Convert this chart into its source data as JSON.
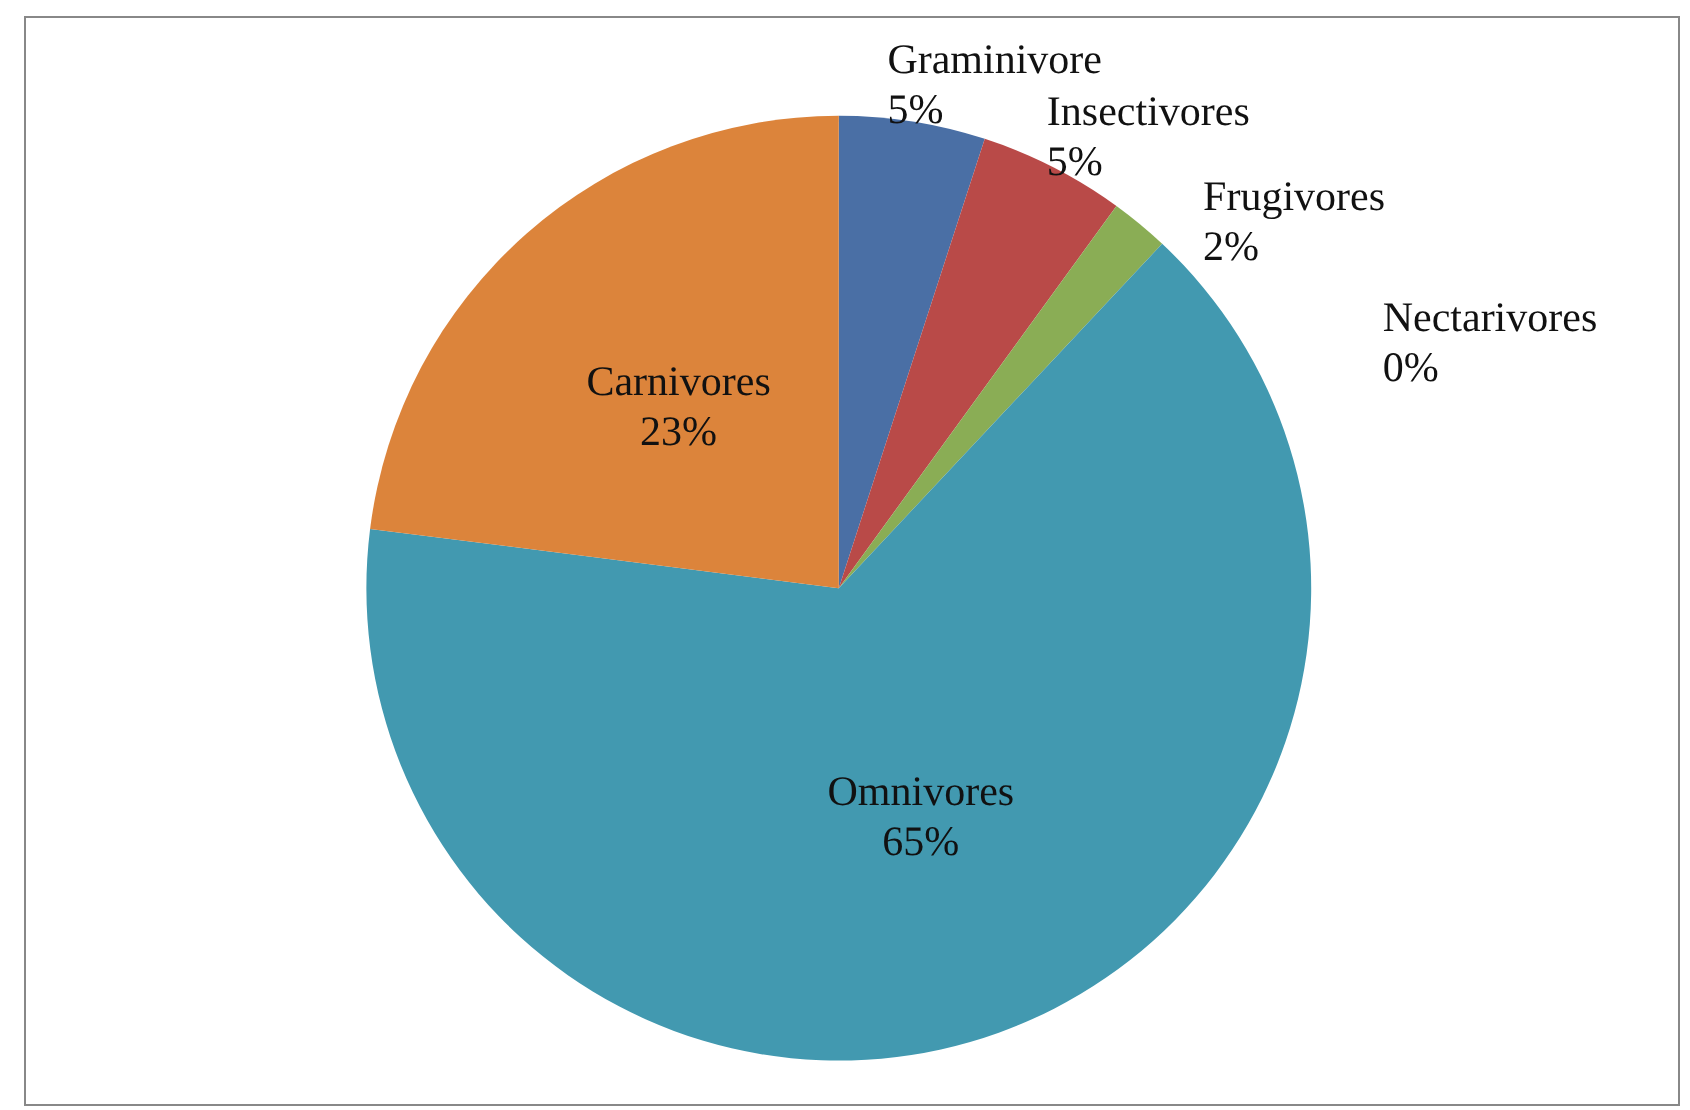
{
  "chart_data": {
    "type": "pie",
    "categories": [
      "Graminivore",
      "Insectivores",
      "Frugivores",
      "Nectarivores",
      "Omnivores",
      "Carnivores"
    ],
    "values": [
      5,
      5,
      2,
      0,
      65,
      23
    ],
    "value_labels": [
      "5%",
      "5%",
      "2%",
      "0%",
      "65%",
      "23%"
    ],
    "colors": [
      "#4a6fa5",
      "#b94a48",
      "#8aad55",
      "#7a5fa0",
      "#4299b0",
      "#dc843b"
    ],
    "legend": false
  }
}
